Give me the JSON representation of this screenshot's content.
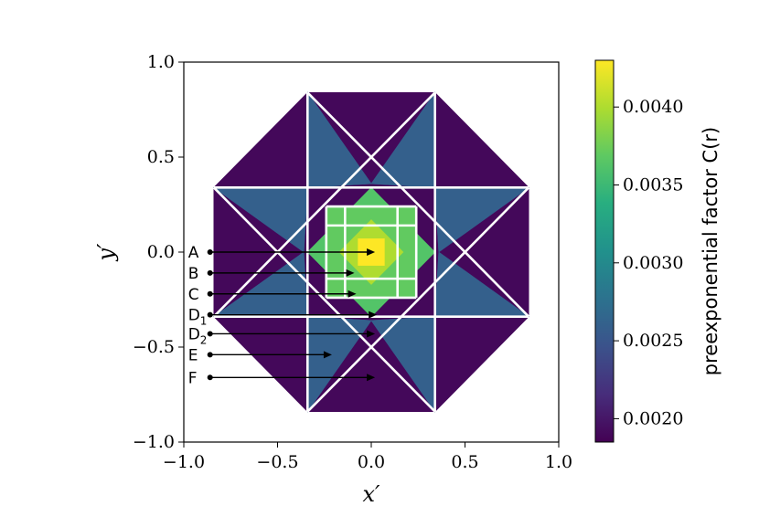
{
  "chart_data": {
    "type": "heatmap",
    "title": "",
    "xlabel": "x′",
    "ylabel": "y′",
    "xlim": [
      -1.0,
      1.0
    ],
    "ylim": [
      -1.0,
      1.0
    ],
    "x_ticks": [
      "−1.0",
      "−0.5",
      "0.0",
      "0.5",
      "1.0"
    ],
    "y_ticks": [
      "1.0",
      "0.5",
      "0.0",
      "−0.5",
      "−1.0"
    ],
    "x_tick_values": [
      -1.0,
      -0.5,
      0.0,
      0.5,
      1.0
    ],
    "y_tick_values": [
      1.0,
      0.5,
      0.0,
      -0.5,
      -1.0
    ],
    "colormap": "viridis",
    "colorbar": {
      "label": "preexponential factor C(r)",
      "range": [
        0.00185,
        0.0043
      ],
      "ticks": [
        "0.0020",
        "0.0025",
        "0.0030",
        "0.0035",
        "0.0040"
      ],
      "tick_values": [
        0.002,
        0.0025,
        0.003,
        0.0035,
        0.004
      ]
    },
    "octagon_extent": 0.84,
    "star_outer_extent": 0.34,
    "star_inner_extent": 0.14,
    "region_values": {
      "outer_corner": 0.0019,
      "star_arm": 0.0026,
      "star_center": 0.0037,
      "inner_ring": 0.0032,
      "core_peak": 0.0043
    },
    "annotations": [
      {
        "label": "A",
        "sub": "",
        "y": 0.0,
        "x_start": -0.86,
        "x_end": 0.02
      },
      {
        "label": "B",
        "sub": "",
        "y": -0.11,
        "x_start": -0.86,
        "x_end": -0.09
      },
      {
        "label": "C",
        "sub": "",
        "y": -0.22,
        "x_start": -0.86,
        "x_end": -0.08
      },
      {
        "label": "D",
        "sub": "1",
        "y": -0.33,
        "x_start": -0.86,
        "x_end": 0.03
      },
      {
        "label": "D",
        "sub": "2",
        "y": -0.43,
        "x_start": -0.86,
        "x_end": 0.02
      },
      {
        "label": "E",
        "sub": "",
        "y": -0.54,
        "x_start": -0.86,
        "x_end": -0.21
      },
      {
        "label": "F",
        "sub": "",
        "y": -0.66,
        "x_start": -0.86,
        "x_end": 0.02
      }
    ]
  }
}
